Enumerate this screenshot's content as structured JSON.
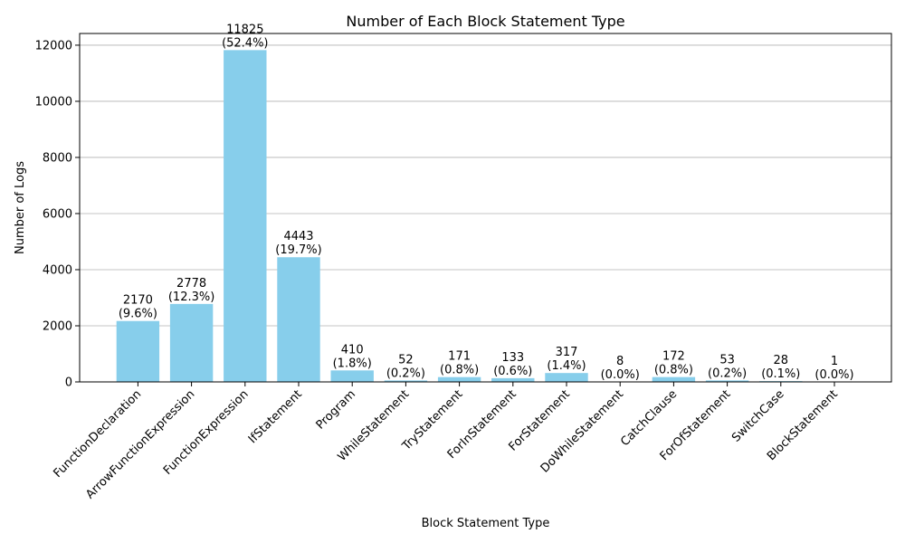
{
  "chart_data": {
    "type": "bar",
    "title": "Number of Each Block Statement Type",
    "xlabel": "Block Statement Type",
    "ylabel": "Number of Logs",
    "categories": [
      "FunctionDeclaration",
      "ArrowFunctionExpression",
      "FunctionExpression",
      "IfStatement",
      "Program",
      "WhileStatement",
      "TryStatement",
      "ForInStatement",
      "ForStatement",
      "DoWhileStatement",
      "CatchClause",
      "ForOfStatement",
      "SwitchCase",
      "BlockStatement"
    ],
    "values": [
      2170,
      2778,
      11825,
      4443,
      410,
      52,
      171,
      133,
      317,
      8,
      172,
      53,
      28,
      1
    ],
    "percent_labels": [
      "(9.6%)",
      "(12.3%)",
      "(52.4%)",
      "(19.7%)",
      "(1.8%)",
      "(0.2%)",
      "(0.8%)",
      "(0.6%)",
      "(1.4%)",
      "(0.0%)",
      "(0.8%)",
      "(0.2%)",
      "(0.1%)",
      "(0.0%)"
    ],
    "ylim": [
      0,
      12417
    ],
    "yticks": [
      0,
      2000,
      4000,
      6000,
      8000,
      10000,
      12000
    ],
    "grid": "y",
    "legend": "none",
    "bar_color": "#87CEEB"
  }
}
